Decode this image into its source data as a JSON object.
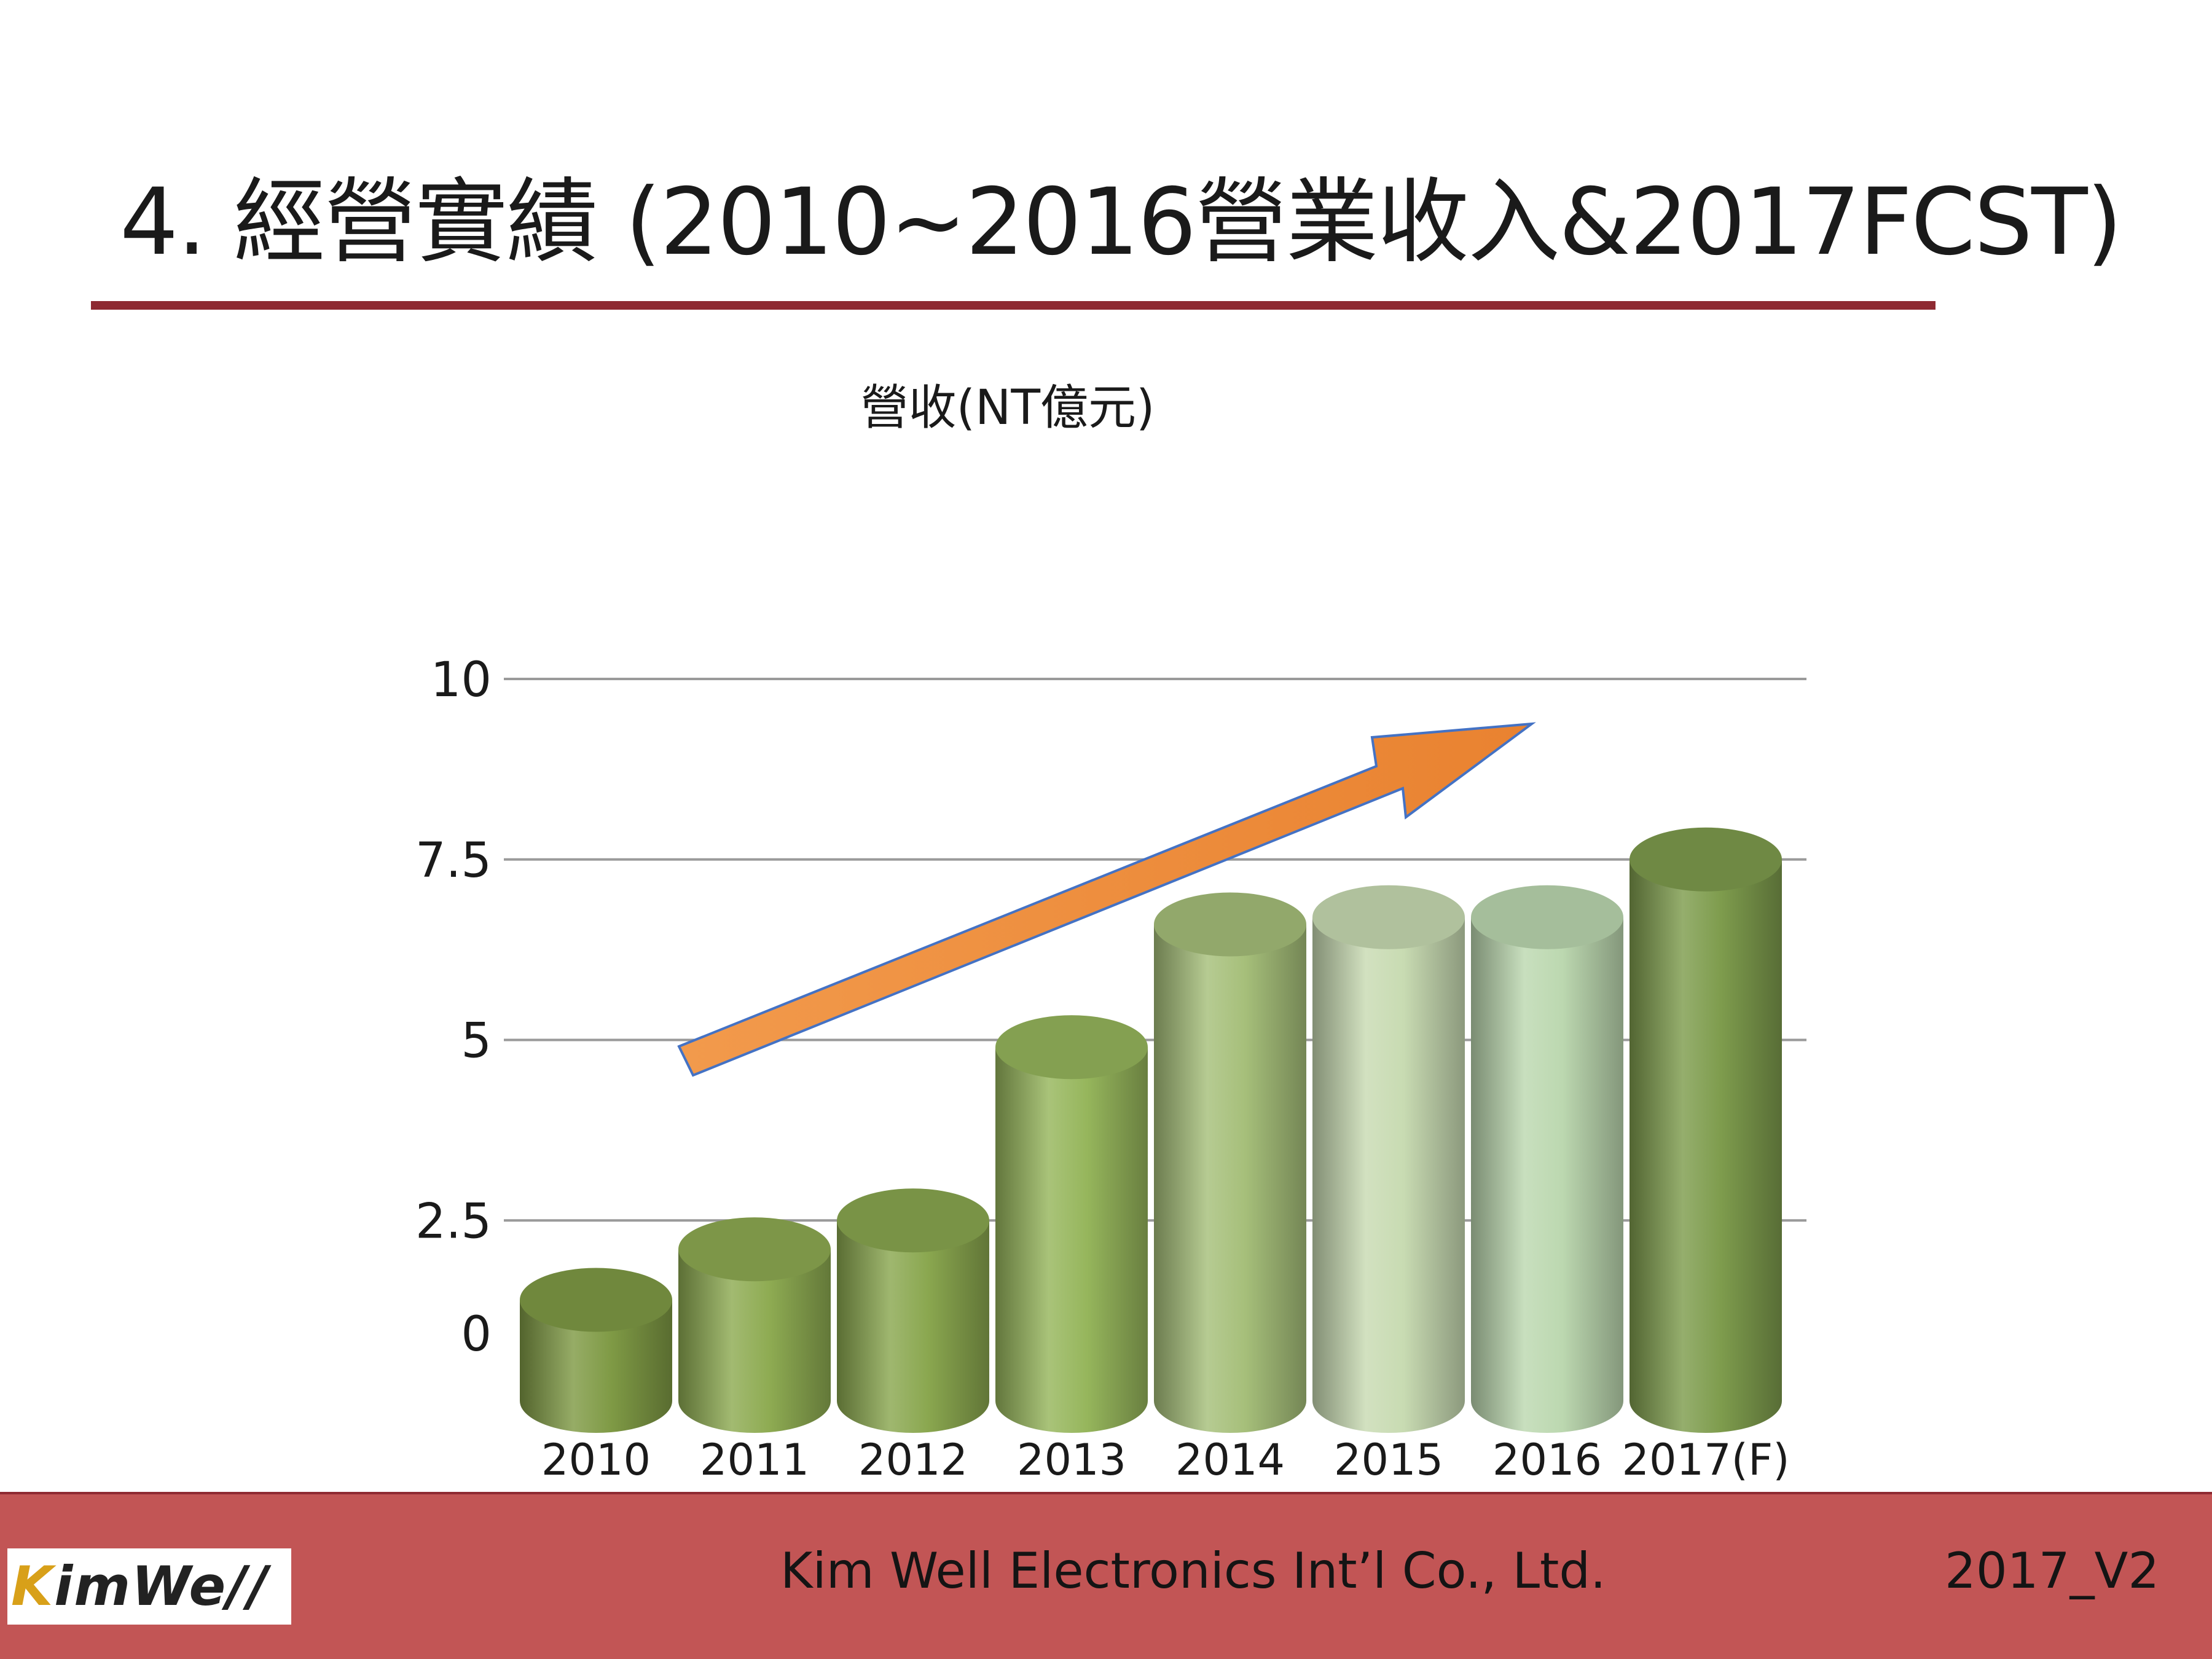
{
  "slide": {
    "title": "4. 經營實績 (2010~2016營業收入&2017FCST)"
  },
  "chart_data": {
    "type": "bar",
    "title": "營收(NT億元)",
    "categories": [
      "2010",
      "2011",
      "2012",
      "2013",
      "2014",
      "2015",
      "2016",
      "2017(F)"
    ],
    "values": [
      1.4,
      2.1,
      2.5,
      4.9,
      6.6,
      6.7,
      6.7,
      7.5
    ],
    "y_ticks": [
      "0",
      "2.5",
      "5",
      "7.5",
      "10"
    ],
    "ylim": [
      0,
      10
    ],
    "grid": true,
    "legend": "none",
    "bar_colors": [
      "#7f9a45",
      "#8eab52",
      "#8aa74f",
      "#96b65c",
      "#a6bf7a",
      "#c8dbb2",
      "#bcd8b0",
      "#7e9c4d"
    ],
    "trend_arrow_color": "#ef8c3a"
  },
  "footer": {
    "logo_k": "K",
    "logo_rest": "imWe//",
    "company": "Kim Well Electronics Int’l Co., Ltd.",
    "version": "2017_V2"
  }
}
